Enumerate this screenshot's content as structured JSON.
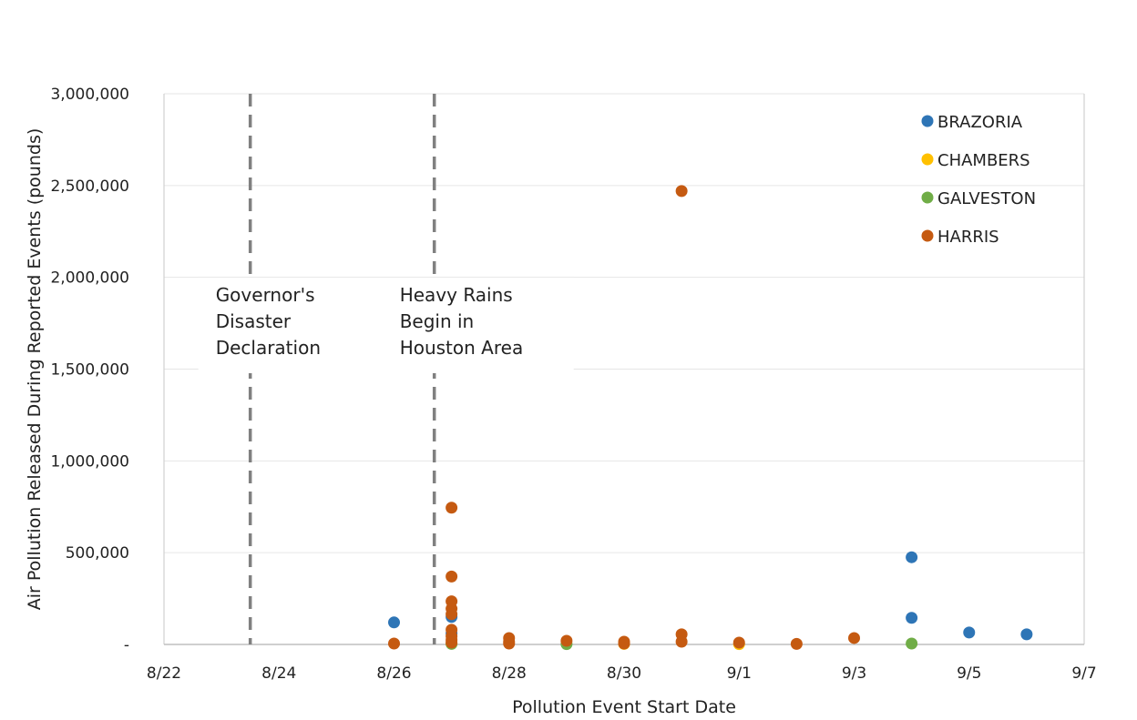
{
  "chart_data": {
    "type": "scatter",
    "title": "",
    "xlabel": "Pollution Event Start Date",
    "ylabel": "Air Pollution Released During Reported Events (pounds)",
    "x_ticks": [
      "8/22",
      "8/24",
      "8/26",
      "8/28",
      "8/30",
      "9/1",
      "9/3",
      "9/5",
      "9/7"
    ],
    "y_ticks": [
      "-",
      "500,000",
      "1,000,000",
      "1,500,000",
      "2,000,000",
      "2,500,000",
      "3,000,000"
    ],
    "xlim": [
      "8/22",
      "9/7"
    ],
    "ylim": [
      0,
      3000000
    ],
    "grid": "horizontal",
    "legend_position": "top-right",
    "vertical_markers": [
      {
        "x": "8/23.5",
        "label_lines": [
          "Governor's",
          "Disaster",
          "Declaration"
        ]
      },
      {
        "x": "8/26.7",
        "label_lines": [
          "Heavy Rains",
          "Begin in",
          "Houston Area"
        ]
      }
    ],
    "series": [
      {
        "name": "BRAZORIA",
        "color": "#2E75B6",
        "points": [
          [
            "8/26",
            120000
          ],
          [
            "8/27",
            150000
          ],
          [
            "8/27",
            60000
          ],
          [
            "9/4",
            475000
          ],
          [
            "9/4",
            145000
          ],
          [
            "9/5",
            65000
          ],
          [
            "9/6",
            55000
          ]
        ]
      },
      {
        "name": "CHAMBERS",
        "color": "#FFC000",
        "points": [
          [
            "8/27",
            5000
          ],
          [
            "8/30",
            3000
          ],
          [
            "9/1",
            2000
          ]
        ]
      },
      {
        "name": "GALVESTON",
        "color": "#70AD47",
        "points": [
          [
            "8/27",
            3000
          ],
          [
            "8/29",
            2000
          ],
          [
            "9/4",
            5000
          ]
        ]
      },
      {
        "name": "HARRIS",
        "color": "#C55A11",
        "points": [
          [
            "8/26",
            5000
          ],
          [
            "8/27",
            745000
          ],
          [
            "8/27",
            370000
          ],
          [
            "8/27",
            235000
          ],
          [
            "8/27",
            195000
          ],
          [
            "8/27",
            165000
          ],
          [
            "8/27",
            80000
          ],
          [
            "8/27",
            45000
          ],
          [
            "8/27",
            25000
          ],
          [
            "8/27",
            10000
          ],
          [
            "8/28",
            35000
          ],
          [
            "8/28",
            15000
          ],
          [
            "8/28",
            5000
          ],
          [
            "8/29",
            20000
          ],
          [
            "8/30",
            15000
          ],
          [
            "8/30",
            5000
          ],
          [
            "8/31",
            2470000
          ],
          [
            "8/31",
            55000
          ],
          [
            "8/31",
            15000
          ],
          [
            "9/1",
            10000
          ],
          [
            "9/2",
            3000
          ],
          [
            "9/3",
            35000
          ]
        ]
      }
    ]
  }
}
